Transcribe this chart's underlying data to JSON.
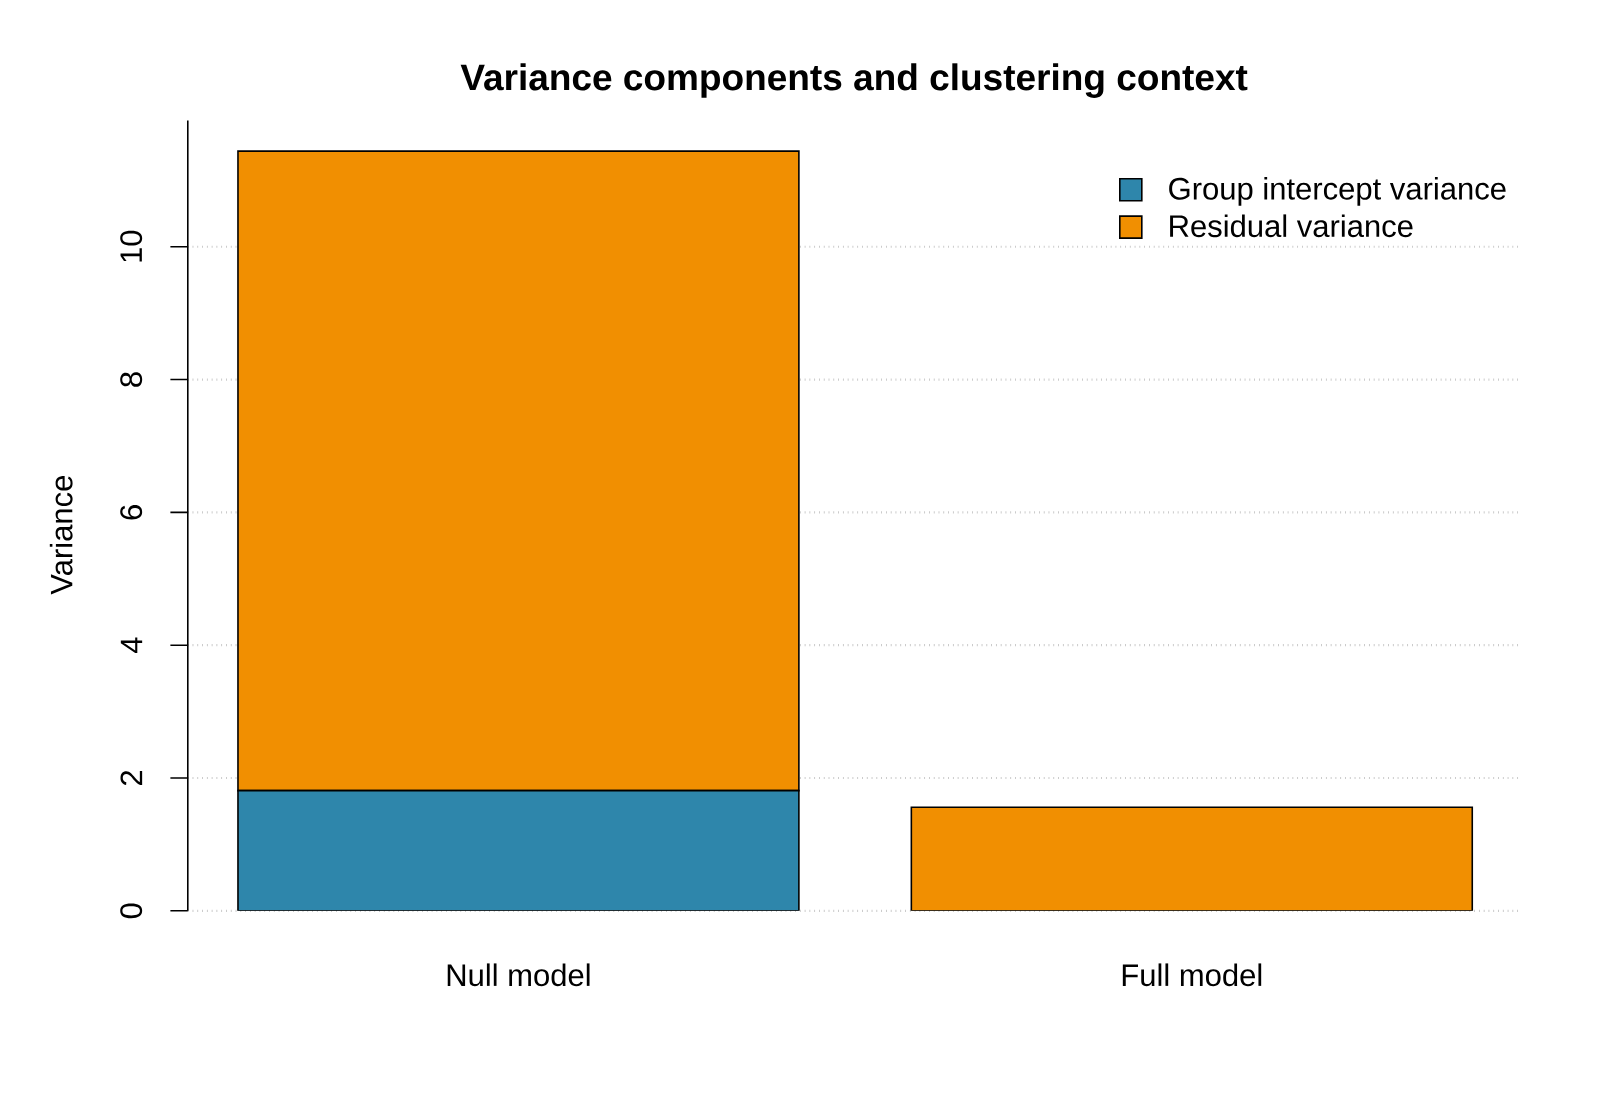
{
  "chart_data": {
    "type": "bar",
    "title": "Variance components and clustering context",
    "ylabel": "Variance",
    "categories": [
      "Null model",
      "Full model"
    ],
    "series": [
      {
        "name": "Group intercept variance",
        "color": "#2e86ab",
        "values": [
          1.81,
          0
        ]
      },
      {
        "name": "Residual variance",
        "color": "#f18f01",
        "values": [
          9.63,
          1.56
        ]
      }
    ],
    "stacked": true,
    "ylim": [
      0,
      11.9
    ],
    "yticks": [
      0,
      2,
      4,
      6,
      8,
      10
    ],
    "grid": "y",
    "legend": "top right"
  }
}
